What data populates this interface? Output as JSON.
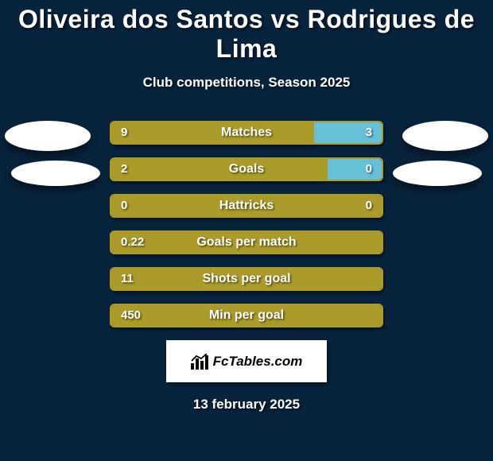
{
  "title": "Oliveira dos Santos vs Rodrigues de Lima",
  "subtitle": "Club competitions, Season 2025",
  "date": "13 february 2025",
  "brand": "FcTables.com",
  "colors": {
    "background": "#08243d",
    "left_bar": "#aa9b2a",
    "right_bar": "#66c0d8",
    "bar_border": "#aa9b2a",
    "text": "#ffffff"
  },
  "avatars": {
    "left_count": 2,
    "right_count": 2
  },
  "stats": [
    {
      "label": "Matches",
      "left_value": "9",
      "right_value": "3",
      "left_share": 0.75,
      "right_share": 0.25
    },
    {
      "label": "Goals",
      "left_value": "2",
      "right_value": "0",
      "left_share": 0.8,
      "right_share": 0.2
    },
    {
      "label": "Hattricks",
      "left_value": "0",
      "right_value": "0",
      "left_share": 1.0,
      "right_share": 0.0
    },
    {
      "label": "Goals per match",
      "left_value": "0.22",
      "right_value": "",
      "left_share": 1.0,
      "right_share": 0.0
    },
    {
      "label": "Shots per goal",
      "left_value": "11",
      "right_value": "",
      "left_share": 1.0,
      "right_share": 0.0
    },
    {
      "label": "Min per goal",
      "left_value": "450",
      "right_value": "",
      "left_share": 1.0,
      "right_share": 0.0
    }
  ]
}
